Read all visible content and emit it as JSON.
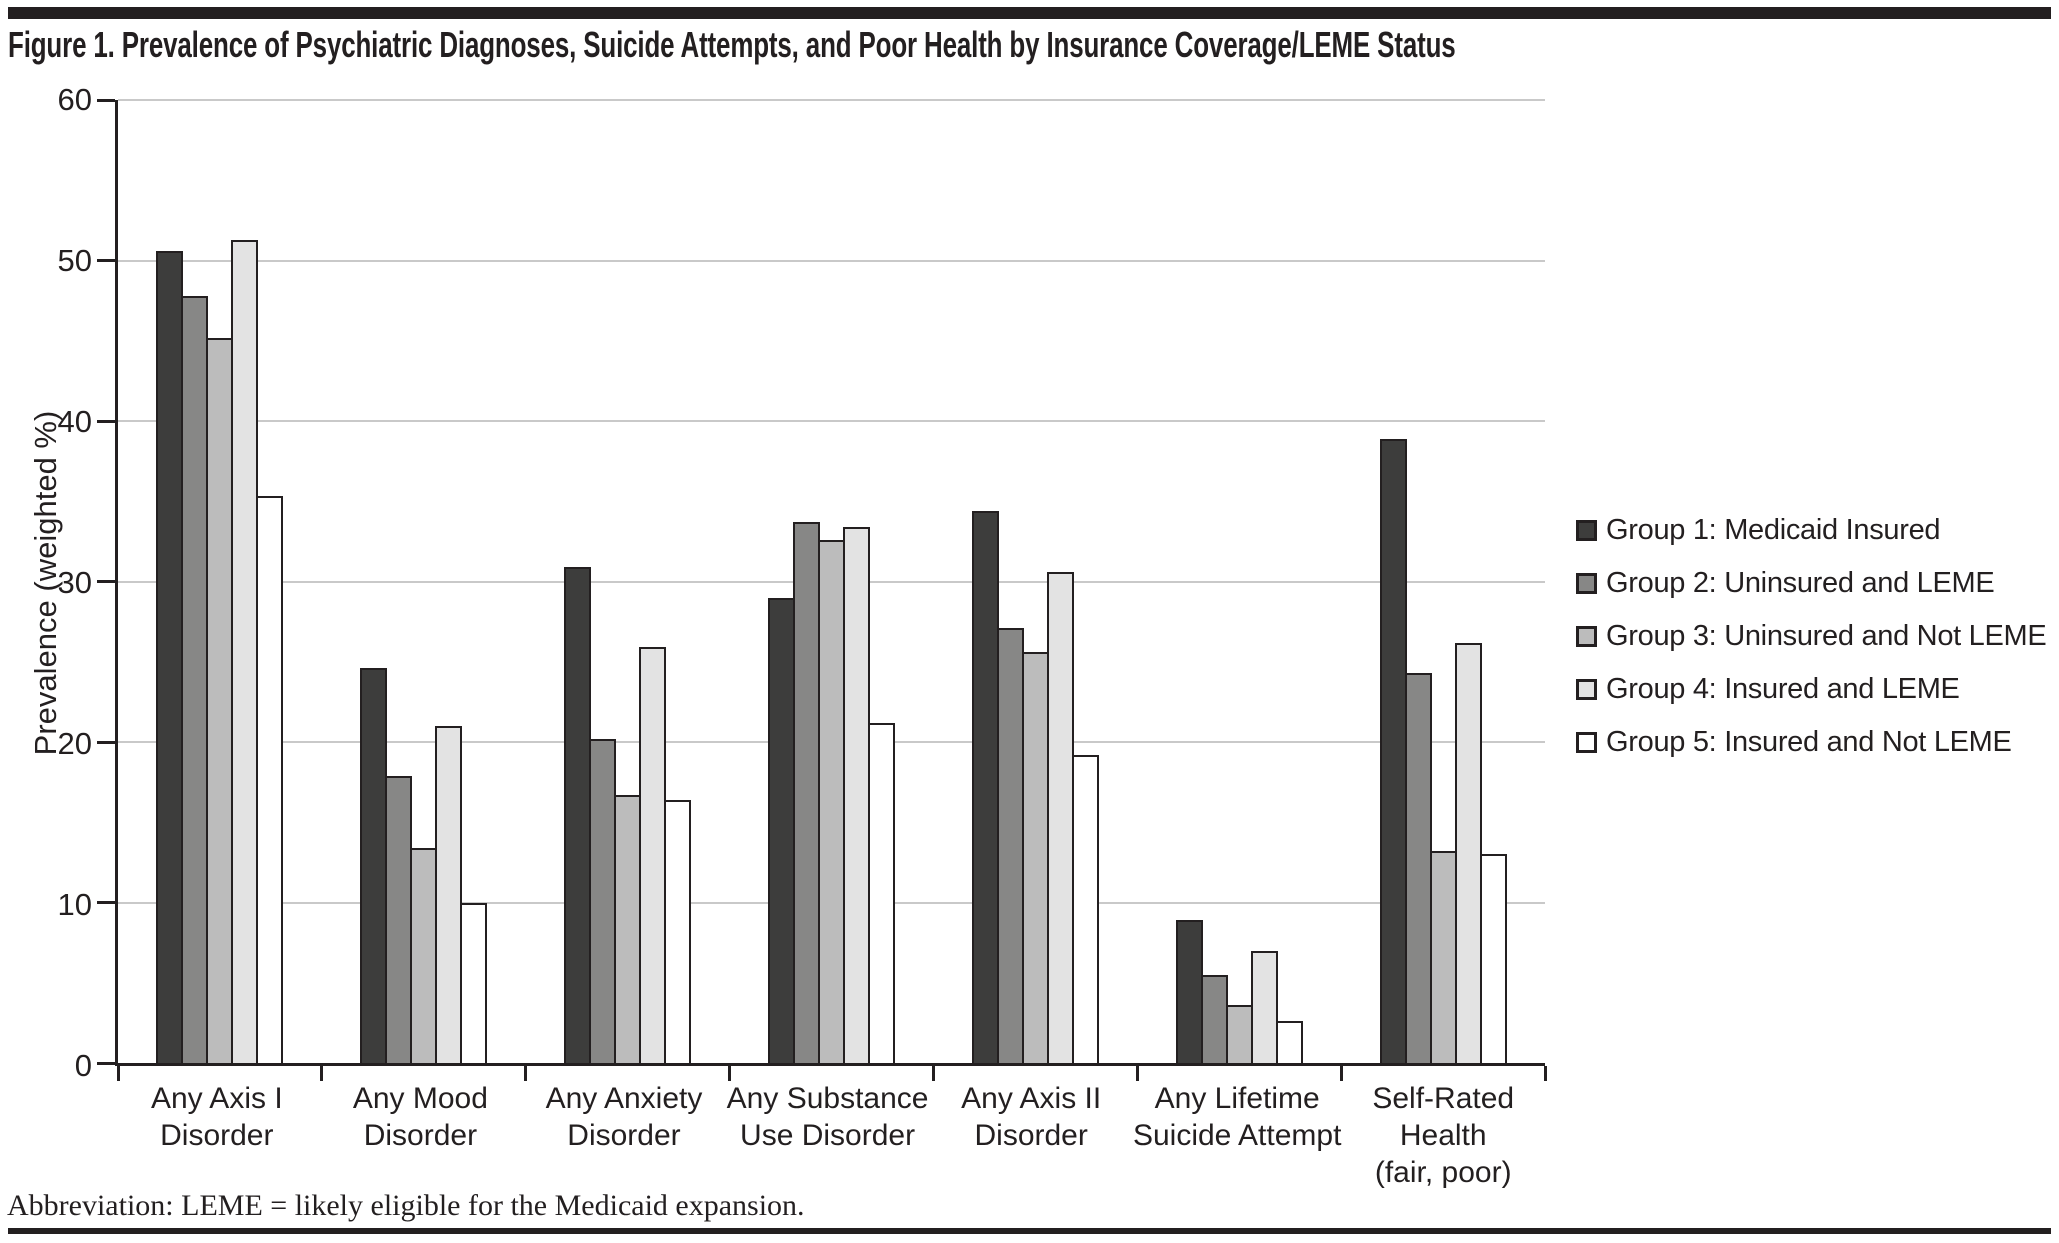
{
  "figure": {
    "title": "Figure 1. Prevalence of Psychiatric Diagnoses, Suicide Attempts, and Poor Health by Insurance Coverage/LEME Status",
    "footnote": "Abbreviation: LEME = likely eligible for the Medicaid expansion."
  },
  "colors": {
    "ink": "#231f20",
    "gridline": "#c9c9c9",
    "background": "#ffffff"
  },
  "chart_data": {
    "type": "bar",
    "title": "Figure 1. Prevalence of Psychiatric Diagnoses, Suicide Attempts, and Poor Health by Insurance Coverage/LEME Status",
    "xlabel": "",
    "ylabel": "Prevalence (weighted %)",
    "ylim": [
      0,
      60
    ],
    "ytick_interval": 10,
    "grid": true,
    "legend_position": "right",
    "categories": [
      "Any Axis I\nDisorder",
      "Any Mood\nDisorder",
      "Any Anxiety\nDisorder",
      "Any Substance\nUse Disorder",
      "Any Axis II\nDisorder",
      "Any Lifetime\nSuicide Attempt",
      "Self-Rated\nHealth\n(fair, poor)"
    ],
    "series": [
      {
        "name": "Group 1: Medicaid Insured",
        "color": "#3d3d3c",
        "values": [
          50.6,
          24.6,
          30.9,
          29.0,
          34.4,
          8.9,
          38.9
        ]
      },
      {
        "name": "Group 2: Uninsured and LEME",
        "color": "#878786",
        "values": [
          47.8,
          17.9,
          20.2,
          33.7,
          27.1,
          5.5,
          24.3
        ]
      },
      {
        "name": "Group 3: Uninsured and Not LEME",
        "color": "#bcbcbc",
        "values": [
          45.2,
          13.4,
          16.7,
          32.6,
          25.6,
          3.6,
          13.2
        ]
      },
      {
        "name": "Group 4: Insured and LEME",
        "color": "#e3e3e3",
        "values": [
          51.3,
          21.0,
          25.9,
          33.4,
          30.6,
          7.0,
          26.2
        ]
      },
      {
        "name": "Group 5: Insured and Not LEME",
        "color": "#ffffff",
        "values": [
          35.3,
          10.0,
          16.4,
          21.2,
          19.2,
          2.6,
          13.0
        ]
      }
    ]
  }
}
